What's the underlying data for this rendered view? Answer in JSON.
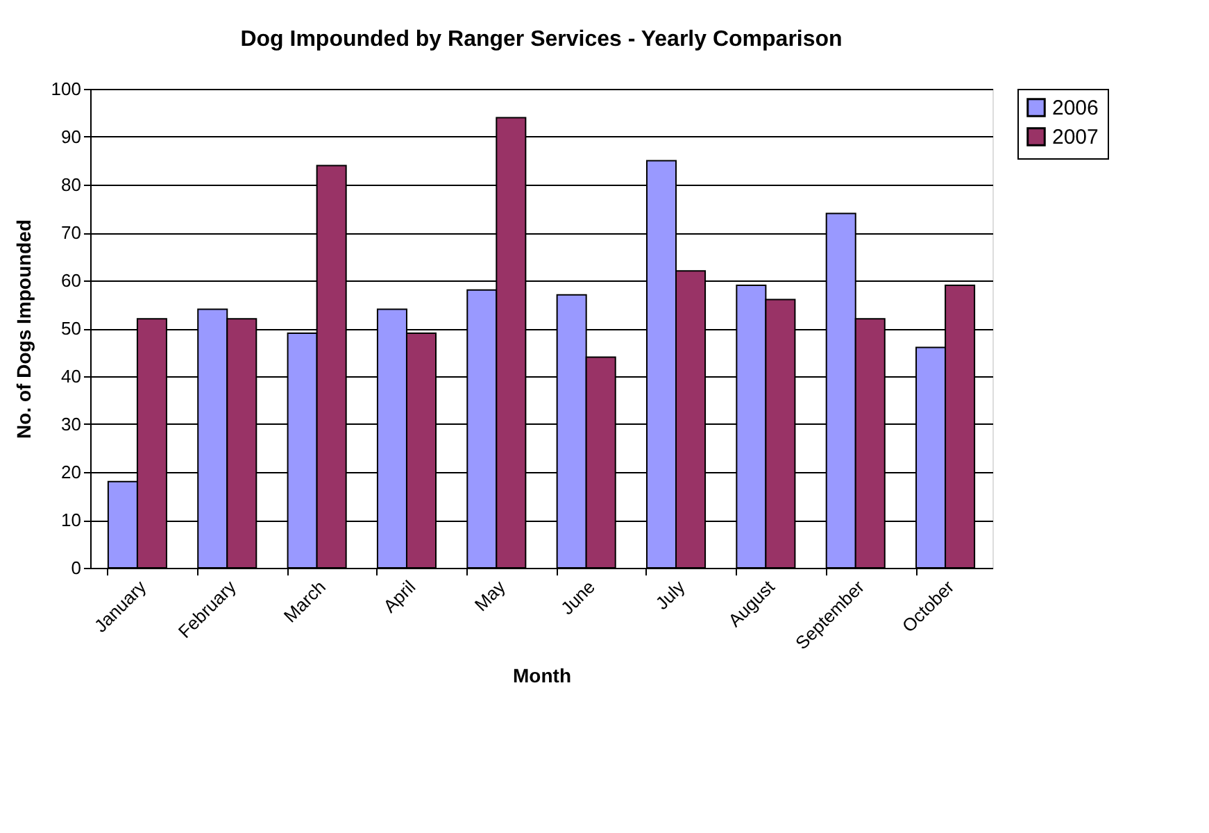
{
  "chart_data": {
    "type": "bar",
    "title": "Dog Impounded by Ranger Services - Yearly Comparison",
    "xlabel": "Month",
    "ylabel": "No. of Dogs Impounded",
    "categories": [
      "January",
      "February",
      "March",
      "April",
      "May",
      "June",
      "July",
      "August",
      "September",
      "October"
    ],
    "series": [
      {
        "name": "2006",
        "color": "#9999ff",
        "values": [
          18,
          54,
          49,
          54,
          58,
          57,
          85,
          59,
          74,
          46
        ]
      },
      {
        "name": "2007",
        "color": "#993366",
        "values": [
          52,
          52,
          84,
          49,
          94,
          44,
          62,
          56,
          52,
          59
        ]
      }
    ],
    "ylim": [
      0,
      100
    ],
    "yticks": [
      0,
      10,
      20,
      30,
      40,
      50,
      60,
      70,
      80,
      90,
      100
    ],
    "grid": "y",
    "legend": "right"
  }
}
